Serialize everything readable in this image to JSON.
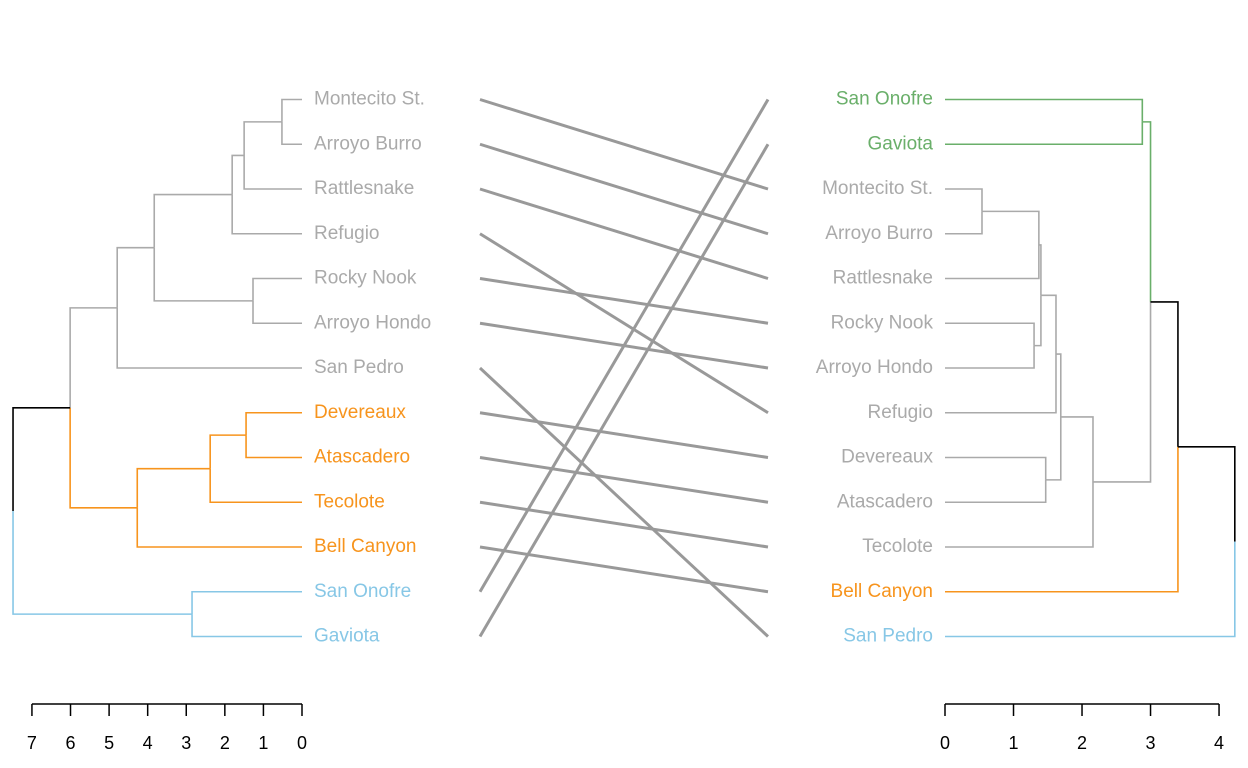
{
  "chart_data": {
    "type": "tanglegram",
    "connector_color": "#999999",
    "left": {
      "leaves": [
        "Montecito St.",
        "Arroyo Burro",
        "Rattlesnake",
        "Refugio",
        "Rocky Nook",
        "Arroyo Hondo",
        "San Pedro",
        "Devereaux",
        "Atascadero",
        "Tecolote",
        "Bell Canyon",
        "San Onofre",
        "Gaviota"
      ],
      "leaf_colors": [
        "#aaaaaa",
        "#aaaaaa",
        "#aaaaaa",
        "#aaaaaa",
        "#aaaaaa",
        "#aaaaaa",
        "#aaaaaa",
        "#f7941d",
        "#f7941d",
        "#f7941d",
        "#f7941d",
        "#87c7e6",
        "#87c7e6"
      ],
      "merges": [
        {
          "children": [
            0,
            1
          ],
          "height": 0.52,
          "color": "#aaaaaa"
        },
        {
          "children": [
            13,
            2
          ],
          "height": 1.5,
          "color": "#aaaaaa"
        },
        {
          "children": [
            14,
            3
          ],
          "height": 1.81,
          "color": "#aaaaaa"
        },
        {
          "children": [
            4,
            5
          ],
          "height": 1.27,
          "color": "#aaaaaa"
        },
        {
          "children": [
            15,
            16
          ],
          "height": 3.83,
          "color": "#aaaaaa"
        },
        {
          "children": [
            17,
            6
          ],
          "height": 4.79,
          "color": "#aaaaaa"
        },
        {
          "children": [
            7,
            8
          ],
          "height": 1.45,
          "color": "#f7941d"
        },
        {
          "children": [
            19,
            9
          ],
          "height": 2.38,
          "color": "#f7941d"
        },
        {
          "children": [
            20,
            10
          ],
          "height": 4.27,
          "color": "#f7941d"
        },
        {
          "children": [
            18,
            21
          ],
          "height": 6.01,
          "color": "#000000"
        },
        {
          "children": [
            11,
            12
          ],
          "height": 2.85,
          "color": "#87c7e6"
        },
        {
          "children": [
            22,
            23
          ],
          "height": 7.49
        }
      ],
      "xlim": [
        7.75,
        0
      ],
      "xticks": [
        7,
        6,
        5,
        4,
        3,
        2,
        1,
        0
      ]
    },
    "right": {
      "leaves": [
        "San Onofre",
        "Gaviota",
        "Montecito St.",
        "Arroyo Burro",
        "Rattlesnake",
        "Rocky Nook",
        "Arroyo Hondo",
        "Refugio",
        "Devereaux",
        "Atascadero",
        "Tecolote",
        "Bell Canyon",
        "San Pedro"
      ],
      "leaf_colors": [
        "#6aaf6a",
        "#6aaf6a",
        "#aaaaaa",
        "#aaaaaa",
        "#aaaaaa",
        "#aaaaaa",
        "#aaaaaa",
        "#aaaaaa",
        "#aaaaaa",
        "#aaaaaa",
        "#aaaaaa",
        "#f7941d",
        "#87c7e6"
      ],
      "merges": [
        {
          "children": [
            0,
            1
          ],
          "height": 2.88,
          "color": "#6aaf6a"
        },
        {
          "children": [
            2,
            3
          ],
          "height": 0.54,
          "color": "#aaaaaa"
        },
        {
          "children": [
            14,
            4
          ],
          "height": 1.37,
          "color": "#aaaaaa"
        },
        {
          "children": [
            5,
            6
          ],
          "height": 1.3,
          "color": "#aaaaaa"
        },
        {
          "children": [
            15,
            16
          ],
          "height": 1.4,
          "color": "#aaaaaa"
        },
        {
          "children": [
            17,
            7
          ],
          "height": 1.62,
          "color": "#aaaaaa"
        },
        {
          "children": [
            8,
            9
          ],
          "height": 1.47,
          "color": "#aaaaaa"
        },
        {
          "children": [
            18,
            19
          ],
          "height": 1.69,
          "color": "#aaaaaa"
        },
        {
          "children": [
            20,
            10
          ],
          "height": 2.16,
          "color": "#aaaaaa"
        },
        {
          "children": [
            13,
            21
          ],
          "height": 3.0,
          "color": "#000000"
        },
        {
          "children": [
            22,
            11
          ],
          "height": 3.4,
          "color": "#000000"
        },
        {
          "children": [
            23,
            12
          ],
          "height": 4.23
        }
      ],
      "xlim": [
        0,
        4.3
      ],
      "xticks": [
        0,
        1,
        2,
        3,
        4
      ]
    }
  }
}
